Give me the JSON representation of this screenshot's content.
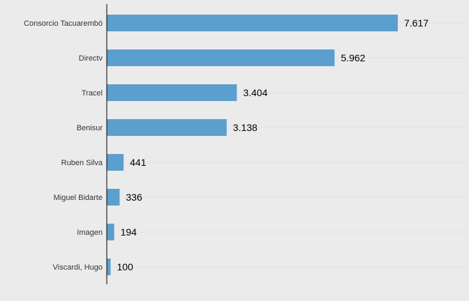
{
  "chart_data": {
    "type": "bar",
    "orientation": "horizontal",
    "categories": [
      "Consorcio Tacuarembó",
      "Directv",
      "Tracel",
      "Benisur",
      "Ruben Silva",
      "Miguel Bidarte",
      "Imagen",
      "Viscardi, Hugo"
    ],
    "values": [
      7617,
      5962,
      3404,
      3138,
      441,
      336,
      194,
      100
    ],
    "value_labels": [
      "7.617",
      "5.962",
      "3.404",
      "3.138",
      "441",
      "336",
      "194",
      "100"
    ],
    "title": "",
    "xlabel": "",
    "ylabel": "",
    "grid": true,
    "legend": "none"
  },
  "colors": {
    "background": "#ebebeb",
    "bar": "#5b9fce",
    "gridline": "#e0e0e0",
    "axis": "#000000",
    "category_text": "#333333",
    "value_text": "#000000"
  }
}
